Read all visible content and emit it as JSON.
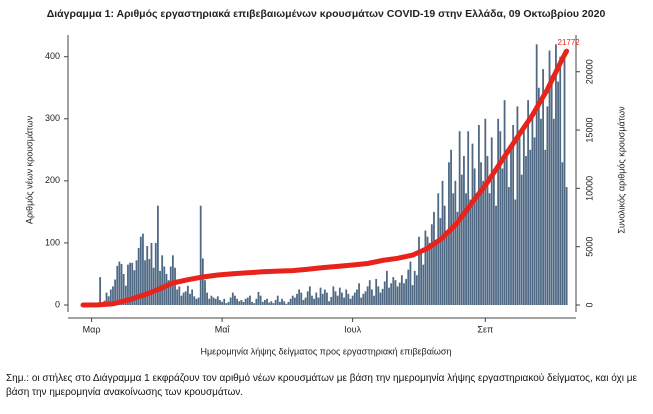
{
  "chart_data": {
    "type": "bar",
    "title": "Διάγραμμα 1: Αριθμός εργαστηριακά επιβεβαιωμένων κρουσμάτων COVID-19 στην Ελλάδα, 09 Οκτωβρίου 2020",
    "y_label": "Αριθμός νέων κρουσμάτων",
    "y2_label": "Συνολικός αριθμός κρουσμάτων",
    "x_label": "Ημερομηνία λήψης δείγματος προς εργαστηριακή επιβεβαίωση",
    "note": "Σημ.: οι στήλες στο Διάγραμμα 1 εκφράζουν τον αριθμό νέων κρουσμάτων με βάση την ημερομηνία λήψης εργαστηριακού δείγματος, και όχι με βάση την ημερομηνία ανακοίνωσης των κρουσμάτων.",
    "color": "#4f6984",
    "categories": [
      null,
      null,
      null,
      null,
      "Μαρ",
      null,
      null,
      null,
      null,
      null,
      null,
      null,
      null,
      null,
      null,
      null,
      null,
      null,
      null,
      null,
      null,
      null,
      null,
      null,
      null,
      null,
      null,
      null,
      null,
      null,
      null,
      null,
      null,
      null,
      null,
      null,
      null,
      null,
      null,
      null,
      null,
      null,
      null,
      null,
      null,
      null,
      null,
      null,
      null,
      null,
      null,
      null,
      null,
      null,
      null,
      null,
      null,
      null,
      null,
      null,
      null,
      null,
      null,
      null,
      null,
      "Μαΐ",
      null,
      null,
      null,
      null,
      null,
      null,
      null,
      null,
      null,
      null,
      null,
      null,
      null,
      null,
      null,
      null,
      null,
      null,
      null,
      null,
      null,
      null,
      null,
      null,
      null,
      null,
      null,
      null,
      null,
      null,
      null,
      null,
      null,
      null,
      null,
      null,
      null,
      null,
      null,
      null,
      null,
      null,
      null,
      null,
      null,
      null,
      null,
      null,
      null,
      null,
      null,
      null,
      null,
      null,
      null,
      null,
      null,
      null,
      null,
      null,
      "Ιουλ",
      null,
      null,
      null,
      null,
      null,
      null,
      null,
      null,
      null,
      null,
      null,
      null,
      null,
      null,
      null,
      null,
      null,
      null,
      null,
      null,
      null,
      null,
      null,
      null,
      null,
      null,
      null,
      null,
      null,
      null,
      null,
      null,
      null,
      null,
      null,
      null,
      null,
      null,
      null,
      null,
      null,
      null,
      null,
      null,
      null,
      null,
      null,
      null,
      null,
      null,
      null,
      null,
      null,
      null,
      null,
      null,
      null,
      null,
      null,
      null,
      null,
      "Σεπ",
      null,
      null,
      null,
      null,
      null,
      null,
      null,
      null,
      null,
      null,
      null,
      null,
      null,
      null,
      null,
      null,
      null,
      null,
      null,
      null,
      null,
      null,
      null,
      null,
      null,
      null,
      null,
      null,
      null,
      null,
      null,
      null,
      null,
      null,
      null,
      null,
      null,
      null
    ],
    "values": [
      1,
      0,
      1,
      1,
      0,
      0,
      3,
      3,
      45,
      2,
      7,
      20,
      14,
      25,
      30,
      41,
      63,
      70,
      66,
      50,
      31,
      65,
      68,
      68,
      56,
      72,
      92,
      110,
      115,
      72,
      95,
      74,
      100,
      60,
      100,
      160,
      55,
      80,
      62,
      50,
      40,
      62,
      80,
      60,
      25,
      30,
      15,
      20,
      22,
      31,
      18,
      25,
      14,
      10,
      12,
      160,
      75,
      40,
      20,
      10,
      15,
      12,
      10,
      14,
      8,
      5,
      10,
      3,
      5,
      12,
      20,
      15,
      10,
      6,
      8,
      5,
      10,
      12,
      15,
      5,
      3,
      10,
      21,
      15,
      5,
      8,
      10,
      4,
      6,
      3,
      8,
      15,
      5,
      10,
      6,
      2,
      5,
      10,
      15,
      12,
      18,
      25,
      20,
      8,
      12,
      22,
      30,
      15,
      10,
      20,
      12,
      28,
      18,
      25,
      20,
      6,
      13,
      30,
      22,
      15,
      28,
      20,
      12,
      25,
      18,
      10,
      15,
      20,
      25,
      35,
      12,
      18,
      22,
      30,
      40,
      25,
      15,
      42,
      30,
      20,
      26,
      38,
      55,
      28,
      35,
      45,
      40,
      30,
      36,
      48,
      35,
      42,
      57,
      70,
      32,
      55,
      48,
      110,
      85,
      65,
      120,
      110,
      100,
      130,
      150,
      100,
      180,
      140,
      200,
      160,
      120,
      230,
      250,
      180,
      200,
      150,
      280,
      210,
      240,
      180,
      280,
      170,
      260,
      220,
      180,
      290,
      230,
      200,
      300,
      240,
      180,
      270,
      210,
      160,
      300,
      280,
      220,
      330,
      250,
      190,
      260,
      290,
      170,
      320,
      270,
      210,
      280,
      240,
      330,
      250,
      310,
      270,
      420,
      350,
      300,
      380,
      250,
      320,
      410,
      370,
      300,
      420,
      360,
      400,
      230,
      410,
      190
    ],
    "cumulative": {
      "axis": "y2",
      "color": "#e8231b",
      "x": [
        0,
        7,
        14,
        21,
        28,
        35,
        42,
        49,
        56,
        63,
        70,
        77,
        84,
        91,
        98,
        105,
        112,
        119,
        126,
        133,
        140,
        147,
        154,
        161,
        168,
        175,
        182,
        189,
        196,
        203,
        210,
        217,
        224,
        226
      ],
      "values": [
        3,
        9,
        99,
        418,
        821,
        1314,
        1884,
        2170,
        2401,
        2576,
        2678,
        2760,
        2850,
        2903,
        2952,
        3068,
        3203,
        3310,
        3432,
        3562,
        3826,
        4007,
        4279,
        4855,
        5749,
        7075,
        8819,
        10524,
        12452,
        14400,
        16286,
        18475,
        21119,
        21772
      ]
    },
    "ylim": [
      0,
      435
    ],
    "yticks": [
      0,
      100,
      200,
      300,
      400
    ],
    "y2lim": [
      0,
      23150
    ],
    "y2ticks": [
      0,
      5000,
      10000,
      15000,
      20000
    ]
  }
}
